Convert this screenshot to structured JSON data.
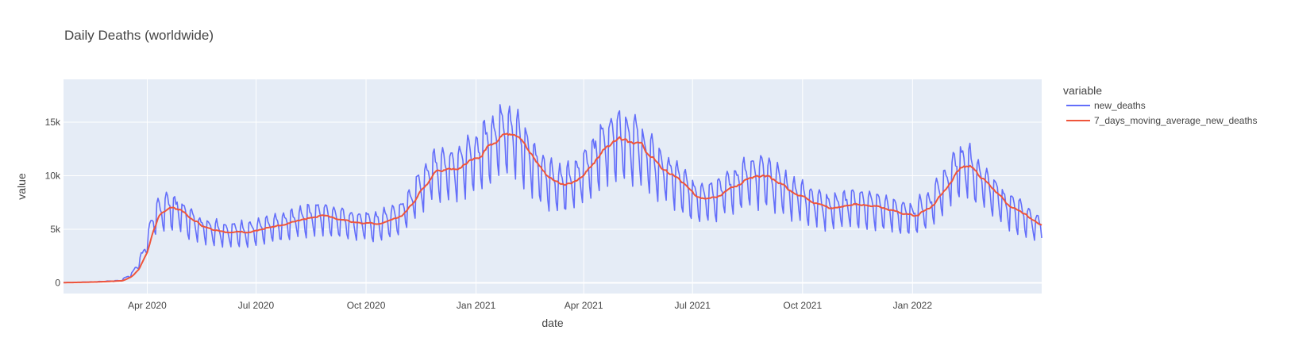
{
  "chart_data": {
    "type": "line",
    "title": "Daily Deaths (worldwide)",
    "xlabel": "date",
    "ylabel": "value",
    "x_range": [
      "2020-01-22",
      "2022-04-19"
    ],
    "ylim": [
      -1000,
      19000
    ],
    "x_ticks": [
      {
        "date": "2020-04-01",
        "label": "Apr 2020"
      },
      {
        "date": "2020-07-01",
        "label": "Jul 2020"
      },
      {
        "date": "2020-10-01",
        "label": "Oct 2020"
      },
      {
        "date": "2021-01-01",
        "label": "Jan 2021"
      },
      {
        "date": "2021-04-01",
        "label": "Apr 2021"
      },
      {
        "date": "2021-07-01",
        "label": "Jul 2021"
      },
      {
        "date": "2021-10-01",
        "label": "Oct 2021"
      },
      {
        "date": "2022-01-01",
        "label": "Jan 2022"
      }
    ],
    "y_ticks": [
      {
        "value": 0,
        "label": "0"
      },
      {
        "value": 5000,
        "label": "5k"
      },
      {
        "value": 10000,
        "label": "10k"
      },
      {
        "value": 15000,
        "label": "15k"
      }
    ],
    "grid": true,
    "background_color": "#e5ecf6",
    "legend": {
      "title": "variable",
      "placement": "right"
    },
    "series": [
      {
        "name": "new_deaths",
        "color": "#636efa",
        "weekly_pattern": true
      },
      {
        "name": "7_days_moving_average_new_deaths",
        "color": "#ef553b",
        "weekly_pattern": false
      }
    ],
    "trend_points": [
      [
        "2020-01-22",
        20
      ],
      [
        "2020-02-15",
        80
      ],
      [
        "2020-03-10",
        200
      ],
      [
        "2020-03-20",
        900
      ],
      [
        "2020-03-28",
        2500
      ],
      [
        "2020-04-03",
        4800
      ],
      [
        "2020-04-10",
        6600
      ],
      [
        "2020-04-18",
        7100
      ],
      [
        "2020-04-28",
        6700
      ],
      [
        "2020-05-05",
        5900
      ],
      [
        "2020-05-20",
        5100
      ],
      [
        "2020-06-10",
        4700
      ],
      [
        "2020-07-01",
        4900
      ],
      [
        "2020-07-20",
        5300
      ],
      [
        "2020-08-10",
        6100
      ],
      [
        "2020-08-25",
        6300
      ],
      [
        "2020-09-10",
        5900
      ],
      [
        "2020-09-30",
        5500
      ],
      [
        "2020-10-10",
        5500
      ],
      [
        "2020-10-28",
        6200
      ],
      [
        "2020-11-10",
        8000
      ],
      [
        "2020-11-25",
        10500
      ],
      [
        "2020-12-15",
        10900
      ],
      [
        "2020-12-30",
        11500
      ],
      [
        "2021-01-10",
        13000
      ],
      [
        "2021-01-27",
        14500
      ],
      [
        "2021-02-10",
        12500
      ],
      [
        "2021-02-25",
        10200
      ],
      [
        "2021-03-15",
        9000
      ],
      [
        "2021-03-28",
        9800
      ],
      [
        "2021-04-05",
        11200
      ],
      [
        "2021-04-15",
        12400
      ],
      [
        "2021-04-28",
        13800
      ],
      [
        "2021-05-15",
        13000
      ],
      [
        "2021-05-30",
        11000
      ],
      [
        "2021-06-15",
        9800
      ],
      [
        "2021-07-01",
        8000
      ],
      [
        "2021-07-20",
        8200
      ],
      [
        "2021-08-10",
        9500
      ],
      [
        "2021-08-30",
        10000
      ],
      [
        "2021-09-20",
        8500
      ],
      [
        "2021-10-20",
        7000
      ],
      [
        "2021-11-20",
        7300
      ],
      [
        "2021-12-10",
        6800
      ],
      [
        "2021-12-30",
        6200
      ],
      [
        "2022-01-15",
        7200
      ],
      [
        "2022-02-05",
        10500
      ],
      [
        "2022-02-15",
        10900
      ],
      [
        "2022-03-01",
        9500
      ],
      [
        "2022-03-20",
        7200
      ],
      [
        "2022-04-19",
        5200
      ]
    ]
  }
}
